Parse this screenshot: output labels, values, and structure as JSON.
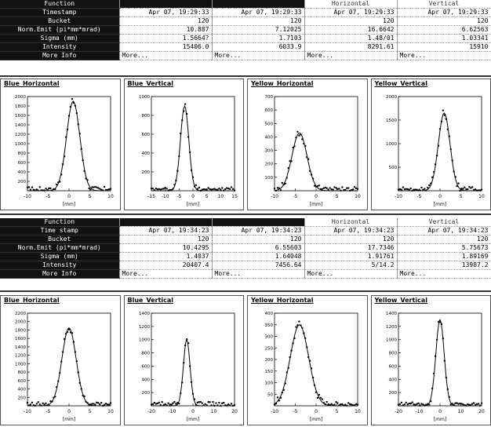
{
  "table1": {
    "row_labels": [
      "Function",
      "Timestamp",
      "Bucket",
      "Norm.Emit (pi*mm*mrad)",
      "Sigma (mm)",
      "Intensity",
      "More Info"
    ],
    "columns": [
      {
        "header": "",
        "values": [
          "Apr 07, 19:29:33",
          "120",
          "10.887",
          "1.5664?",
          "15406.0",
          "More..."
        ]
      },
      {
        "header": "",
        "values": [
          "Apr 07, 19:29:33",
          "120",
          "7.12025",
          "1.7103",
          "6033.9",
          "More..."
        ]
      },
      {
        "header": "Horizontal",
        "values": [
          "Apr 07, 19:29:33",
          "120",
          "16.6642",
          "1.48/01",
          "8291.61",
          "More..."
        ]
      },
      {
        "header": "Vertical",
        "values": [
          "Apr 07, 19:29:33",
          "120",
          "6.62563",
          "1.03341",
          "15910",
          "More..."
        ]
      }
    ]
  },
  "table2": {
    "row_labels": [
      "Function",
      "Time stamp",
      "Bucket",
      "Norm.Emit (pi*mm*mrad)",
      "Sigma (mm)",
      "Intensity",
      "More Info"
    ],
    "columns": [
      {
        "header": "",
        "values": [
          "Apr 07, 19:34:23",
          "120",
          "10.4295",
          "1.4037",
          "20407.4",
          "More..."
        ]
      },
      {
        "header": "",
        "values": [
          "Apr 07, 19:34:23",
          "120",
          "6.55603",
          "1.64048",
          "7456.64",
          "More..."
        ]
      },
      {
        "header": "Horizontal",
        "values": [
          "Apr 07, 19:34:23",
          "120",
          "17.7346",
          "1.91761",
          "5/14.2",
          "More..."
        ]
      },
      {
        "header": "Vertical",
        "values": [
          "Apr 07, 19:34:23",
          "120",
          "5.75673",
          "1.89169",
          "13987.2",
          "More..."
        ]
      }
    ]
  },
  "plots_row1": [
    {
      "title": "Blue_Horizontal",
      "xlabel": "[mm]",
      "xticks": [
        "-10",
        "-5",
        "0",
        "5",
        "10"
      ],
      "yticks": [
        "2000",
        "1800",
        "1600",
        "1400",
        "1200",
        "1000",
        "800",
        "600",
        "400",
        "200"
      ],
      "center": 1,
      "width": 1.6,
      "ymax": 2000,
      "amp": 1900,
      "color": "#000000"
    },
    {
      "title": "Blue_Vertical",
      "xlabel": "[mm]",
      "xticks": [
        "-15",
        "-10",
        "-5",
        "0",
        "5",
        "10",
        "15"
      ],
      "yticks": [
        "1000",
        "800",
        "600",
        "400",
        "200"
      ],
      "center": -3,
      "width": 1.5,
      "ymax": 1000,
      "amp": 900,
      "color": "#000000"
    },
    {
      "title": "Yellow_Horizontal",
      "xlabel": "[mm]",
      "xticks": [
        "-10",
        "-5",
        "0",
        "5",
        "10"
      ],
      "yticks": [
        "700",
        "600",
        "500",
        "400",
        "300",
        "200",
        "100"
      ],
      "center": -4,
      "width": 1.8,
      "ymax": 700,
      "amp": 430,
      "color": "#000000"
    },
    {
      "title": "Yellow_Vertical",
      "xlabel": "[mm]",
      "xticks": [
        "-10",
        "-5",
        "0",
        "5",
        "10"
      ],
      "yticks": [
        "2000",
        "1500",
        "1000",
        "500"
      ],
      "center": 1,
      "width": 1.4,
      "ymax": 2000,
      "amp": 1650,
      "color": "#000000"
    }
  ],
  "plots_row2": [
    {
      "title": "Blue_Horizontal",
      "xlabel": "[mm]",
      "xticks": [
        "-10",
        "-5",
        "0",
        "5",
        "10"
      ],
      "yticks": [
        "2200",
        "2000",
        "1800",
        "1600",
        "1400",
        "1200",
        "1000",
        "800",
        "600",
        "400",
        "200"
      ],
      "center": 0,
      "width": 1.7,
      "ymax": 2200,
      "amp": 1850,
      "color": "#000000"
    },
    {
      "title": "Blue_Vertical",
      "xlabel": "[mm]",
      "xticks": [
        "-20",
        "-10",
        "0",
        "10",
        "20"
      ],
      "yticks": [
        "1400",
        "1200",
        "1000",
        "800",
        "600",
        "400",
        "200"
      ],
      "center": -3,
      "width": 1.6,
      "ymax": 1400,
      "amp": 1000,
      "color": "#000000"
    },
    {
      "title": "Yellow_Horizontal",
      "xlabel": "[mm]",
      "xticks": [
        "-10",
        "-5",
        "0",
        "5",
        "10"
      ],
      "yticks": [
        "400",
        "350",
        "300",
        "250",
        "200",
        "150",
        "100",
        "50"
      ],
      "center": -4,
      "width": 2.2,
      "ymax": 400,
      "amp": 350,
      "color": "#000000"
    },
    {
      "title": "Yellow_Vertical",
      "xlabel": "[mm]",
      "xticks": [
        "-20",
        "-10",
        "0",
        "10",
        "20"
      ],
      "yticks": [
        "1400",
        "1200",
        "1000",
        "800",
        "600",
        "400",
        "200"
      ],
      "center": 0,
      "width": 2.0,
      "ymax": 1400,
      "amp": 1300,
      "color": "#000000"
    }
  ]
}
